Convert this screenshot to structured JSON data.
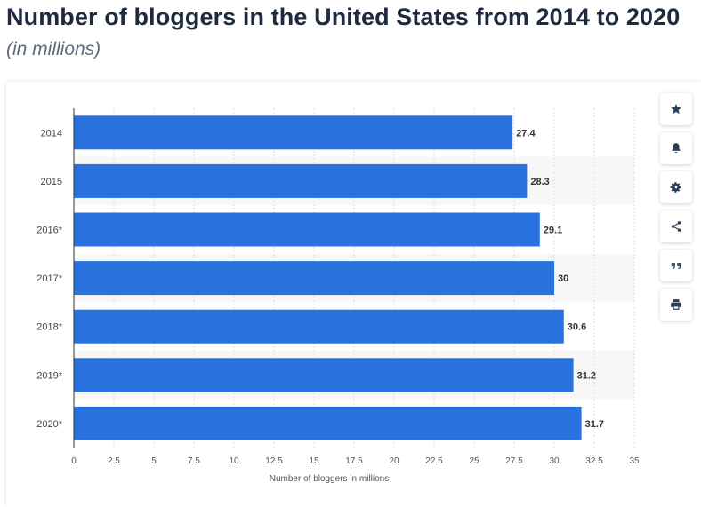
{
  "page": {
    "title": "Number of bloggers in the United States from 2014 to 2020",
    "subtitle": "(in millions)"
  },
  "toolbar": {
    "icons": [
      "star-icon",
      "bell-icon",
      "gear-icon",
      "share-icon",
      "quote-icon",
      "print-icon"
    ]
  },
  "colors": {
    "bar": "#2a73de",
    "grid": "#d8dde3",
    "band": "#f7f7f7",
    "axis": "#333333",
    "label": "#333333"
  },
  "chart_data": {
    "type": "bar",
    "orientation": "horizontal",
    "categories": [
      "2014",
      "2015",
      "2016*",
      "2017*",
      "2018*",
      "2019*",
      "2020*"
    ],
    "values": [
      27.4,
      28.3,
      29.1,
      30,
      30.6,
      31.2,
      31.7
    ],
    "value_labels": [
      "27.4",
      "28.3",
      "29.1",
      "30",
      "30.6",
      "31.2",
      "31.7"
    ],
    "xlabel": "Number of bloggers in millions",
    "xlim": [
      0,
      35
    ],
    "xticks": [
      "0",
      "2.5",
      "5",
      "7.5",
      "10",
      "12.5",
      "15",
      "17.5",
      "20",
      "22.5",
      "25",
      "27.5",
      "30",
      "32.5",
      "35"
    ],
    "grid": true,
    "legend": "none"
  }
}
